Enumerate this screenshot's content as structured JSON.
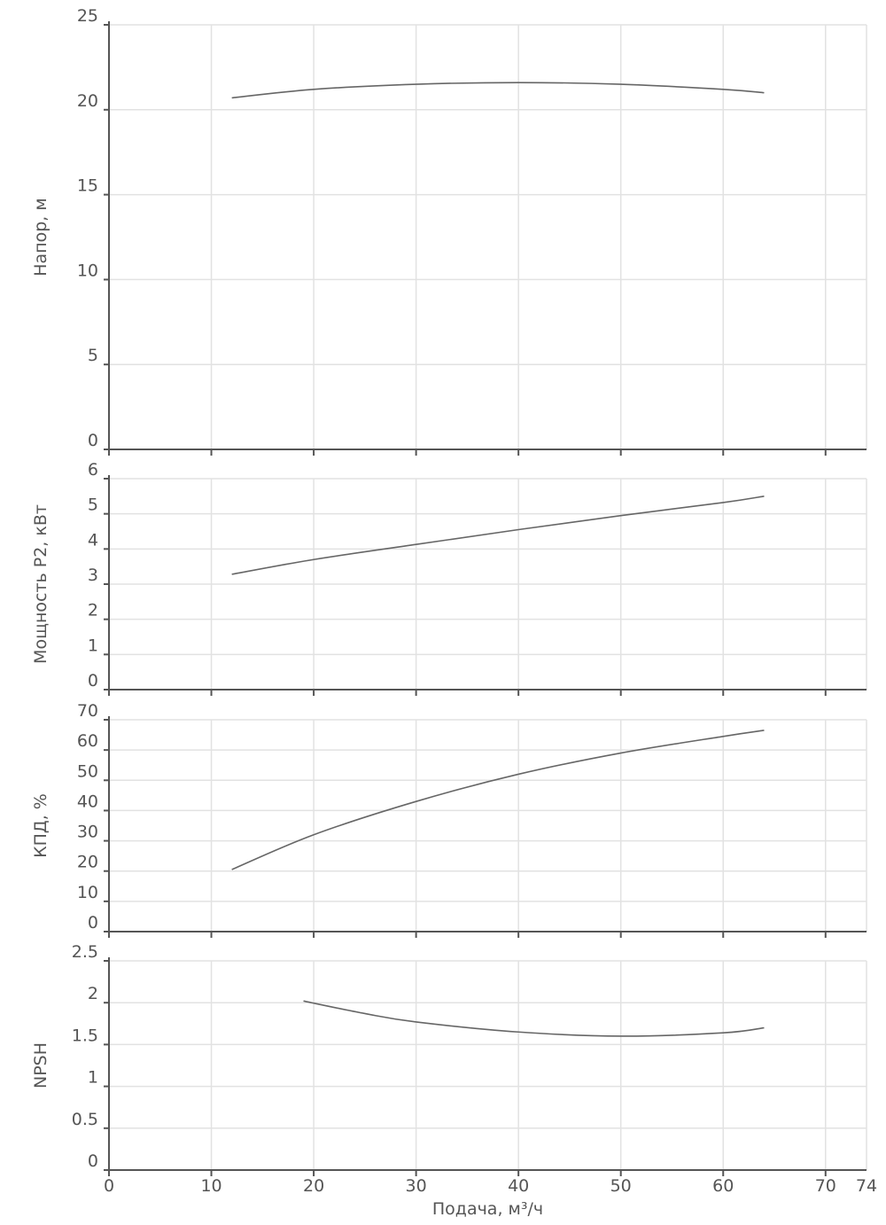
{
  "chart_data": [
    {
      "type": "line",
      "ylabel": "Напор, м",
      "ylim": [
        0,
        25
      ],
      "yticks": [
        "0",
        "5",
        "10",
        "15",
        "20",
        "25"
      ],
      "xlim": [
        0,
        74
      ],
      "x": [
        12,
        20,
        30,
        40,
        50,
        60,
        64
      ],
      "values": [
        20.7,
        21.2,
        21.5,
        21.6,
        21.5,
        21.2,
        21.0
      ]
    },
    {
      "type": "line",
      "ylabel": "Мощность P2, кВт",
      "ylim": [
        0,
        6
      ],
      "yticks": [
        "0",
        "1",
        "2",
        "3",
        "4",
        "5",
        "6"
      ],
      "xlim": [
        0,
        74
      ],
      "x": [
        12,
        20,
        30,
        40,
        50,
        60,
        64
      ],
      "values": [
        3.28,
        3.7,
        4.13,
        4.55,
        4.95,
        5.32,
        5.5
      ]
    },
    {
      "type": "line",
      "ylabel": "КПД, %",
      "ylim": [
        0,
        70
      ],
      "yticks": [
        "0",
        "10",
        "20",
        "30",
        "40",
        "50",
        "60",
        "70"
      ],
      "xlim": [
        0,
        74
      ],
      "x": [
        12,
        20,
        30,
        40,
        50,
        60,
        64
      ],
      "values": [
        20.5,
        32,
        43,
        52,
        59,
        64.5,
        66.5
      ]
    },
    {
      "type": "line",
      "ylabel": "NPSH",
      "ylim": [
        0,
        2.5
      ],
      "yticks": [
        "0",
        "0.5",
        "1",
        "1.5",
        "2",
        "2.5"
      ],
      "xlim": [
        0,
        74
      ],
      "x": [
        19,
        25,
        30,
        40,
        50,
        60,
        64
      ],
      "values": [
        2.02,
        1.87,
        1.77,
        1.65,
        1.6,
        1.64,
        1.7
      ],
      "xlabel": "Подача, м³/ч",
      "xticks": [
        "0",
        "10",
        "20",
        "30",
        "40",
        "50",
        "60",
        "70",
        "74"
      ]
    }
  ]
}
